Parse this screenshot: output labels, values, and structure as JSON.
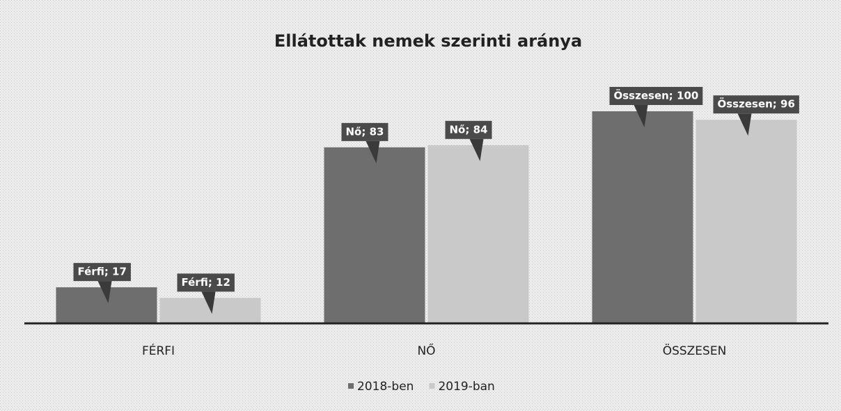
{
  "chart_data": {
    "type": "bar",
    "title": "Ellátottak nemek szerinti aránya",
    "categories": [
      "FÉRFI",
      "NŐ",
      "ÖSSZESEN"
    ],
    "series": [
      {
        "name": "2018-ben",
        "color": "#6e6e6e",
        "values": [
          17,
          83,
          100
        ],
        "value_labels": [
          "Férfi; 17",
          "Nő; 83",
          "Összesen; 100"
        ]
      },
      {
        "name": "2019-ban",
        "color": "#c9c9c9",
        "values": [
          12,
          84,
          96
        ],
        "value_labels": [
          "Férfi; 12",
          "Nő; 84",
          "Összesen; 96"
        ]
      }
    ],
    "ylim": [
      0,
      100
    ],
    "legend": "bottom"
  }
}
